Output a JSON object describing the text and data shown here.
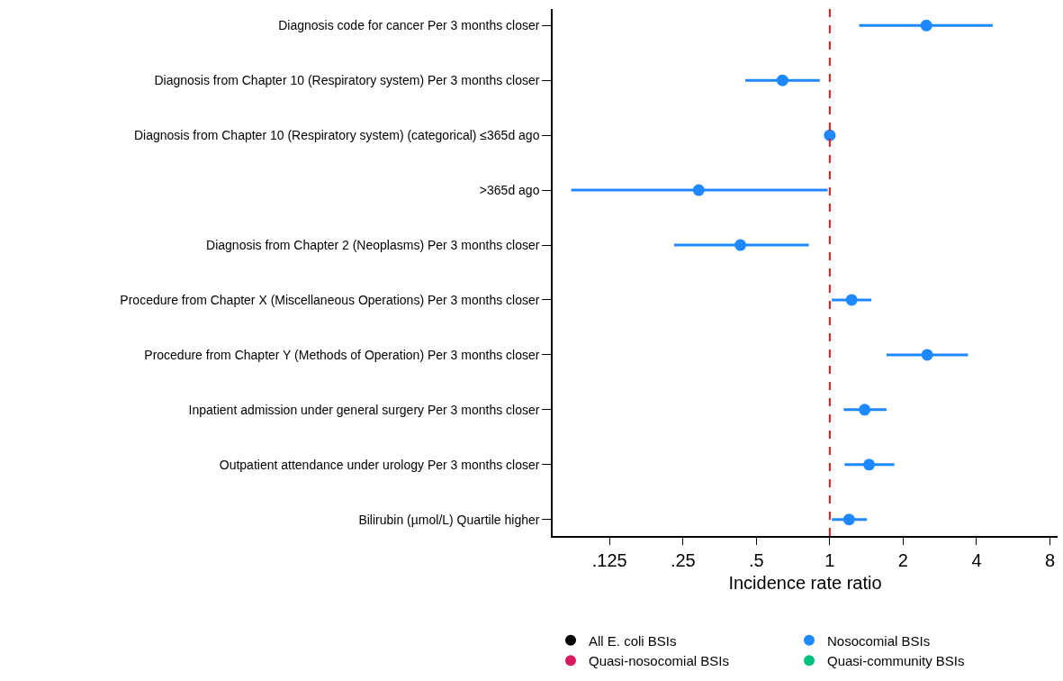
{
  "chart_data": {
    "type": "scatter",
    "xlabel": "Incidence rate ratio",
    "categories": [
      "Diagnosis code for cancer Per 3 months closer",
      "Diagnosis from Chapter 10 (Respiratory system) Per 3 months closer",
      "Diagnosis from Chapter 10 (Respiratory system) (categorical) ≤365d ago",
      ">365d ago",
      "Diagnosis from Chapter 2 (Neoplasms) Per 3 months closer",
      "Procedure from Chapter X (Miscellaneous Operations) Per 3 months closer",
      "Procedure from Chapter Y (Methods of Operation) Per 3 months closer",
      "Inpatient admission under general surgery Per 3 months closer",
      "Outpatient attendance under urology Per 3 months closer",
      "Bilirubin (µmol/L) Quartile higher"
    ],
    "orientation": "horizontal",
    "series": [
      {
        "name": "All E. coli BSIs",
        "color": "#000000",
        "values": [
          null,
          null,
          null,
          null,
          null,
          null,
          null,
          null,
          null,
          null
        ]
      },
      {
        "name": "Nosocomial BSIs",
        "color": "#1e88ff",
        "values": [
          2.49,
          0.64,
          1,
          0.29,
          0.43,
          1.23,
          2.51,
          1.39,
          1.45,
          1.2
        ],
        "errors": [
          [
            1.32,
            4.66
          ],
          [
            0.45,
            0.91
          ],
          null,
          [
            0.087,
            0.98
          ],
          [
            0.23,
            0.82
          ],
          [
            1.02,
            1.48
          ],
          [
            1.71,
            3.69
          ],
          [
            1.14,
            1.71
          ],
          [
            1.15,
            1.84
          ],
          [
            1.02,
            1.42
          ]
        ]
      },
      {
        "name": "Quasi-nosocomial BSIs",
        "color": "#d81b60",
        "values": [
          null,
          null,
          null,
          null,
          null,
          null,
          null,
          null,
          null,
          null
        ]
      },
      {
        "name": "Quasi-community BSIs",
        "color": "#00c080",
        "values": [
          null,
          null,
          null,
          null,
          null,
          null,
          null,
          null,
          null,
          null
        ]
      }
    ],
    "xlim": [
      0.073,
      8.6
    ],
    "xticks": [
      {
        "value": 0.125,
        "label": ".125"
      },
      {
        "value": 0.25,
        "label": ".25"
      },
      {
        "value": 0.5,
        "label": ".5"
      },
      1,
      2,
      4,
      8
    ],
    "log": "x",
    "ref_lines": [
      {
        "axis": "x",
        "value": 1,
        "color": "#e31a1c",
        "line_style": "dashed"
      }
    ],
    "grid": false,
    "legend": "bottom",
    "marker": "circle"
  }
}
